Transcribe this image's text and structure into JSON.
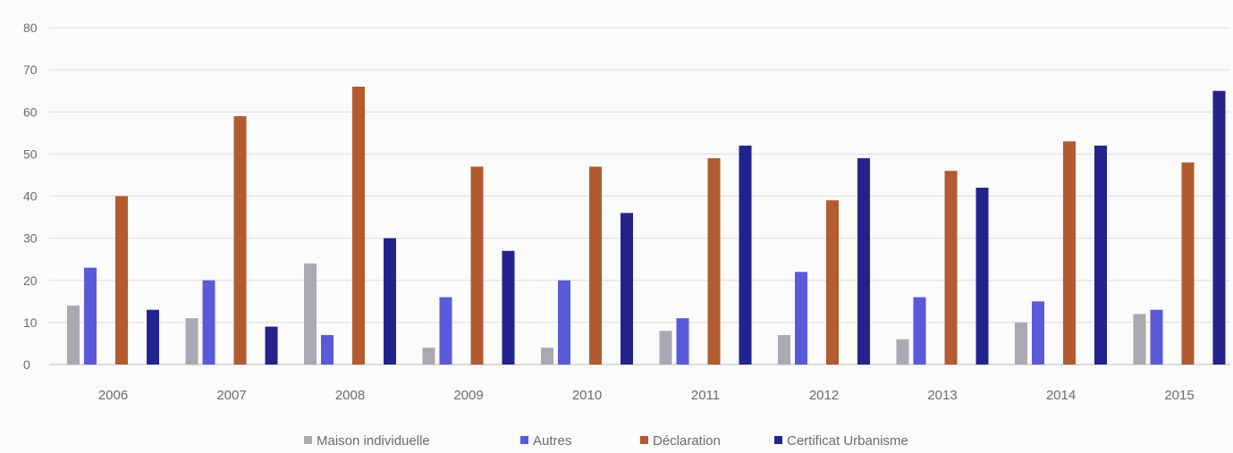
{
  "chart_data": {
    "type": "bar",
    "title": "",
    "xlabel": "",
    "ylabel": "",
    "ylim": [
      0,
      80
    ],
    "yticks": [
      0,
      10,
      20,
      30,
      40,
      50,
      60,
      70,
      80
    ],
    "grid": true,
    "legend_position": "bottom",
    "categories": [
      "2006",
      "2007",
      "2008",
      "2009",
      "2010",
      "2011",
      "2012",
      "2013",
      "2014",
      "2015"
    ],
    "series": [
      {
        "name": "Maison individuelle",
        "color": "#a9a9b3",
        "values": [
          14,
          11,
          24,
          4,
          4,
          8,
          7,
          6,
          10,
          12
        ]
      },
      {
        "name": "Autres",
        "color": "#5a5ad8",
        "values": [
          23,
          20,
          7,
          16,
          20,
          11,
          22,
          16,
          15,
          13
        ]
      },
      {
        "name": "Déclaration",
        "color": "#b35a30",
        "values": [
          40,
          59,
          66,
          47,
          47,
          49,
          39,
          46,
          53,
          48
        ]
      },
      {
        "name": "Certificat Urbanisme",
        "color": "#23238e",
        "values": [
          13,
          9,
          30,
          27,
          36,
          52,
          49,
          42,
          52,
          65
        ]
      }
    ]
  }
}
